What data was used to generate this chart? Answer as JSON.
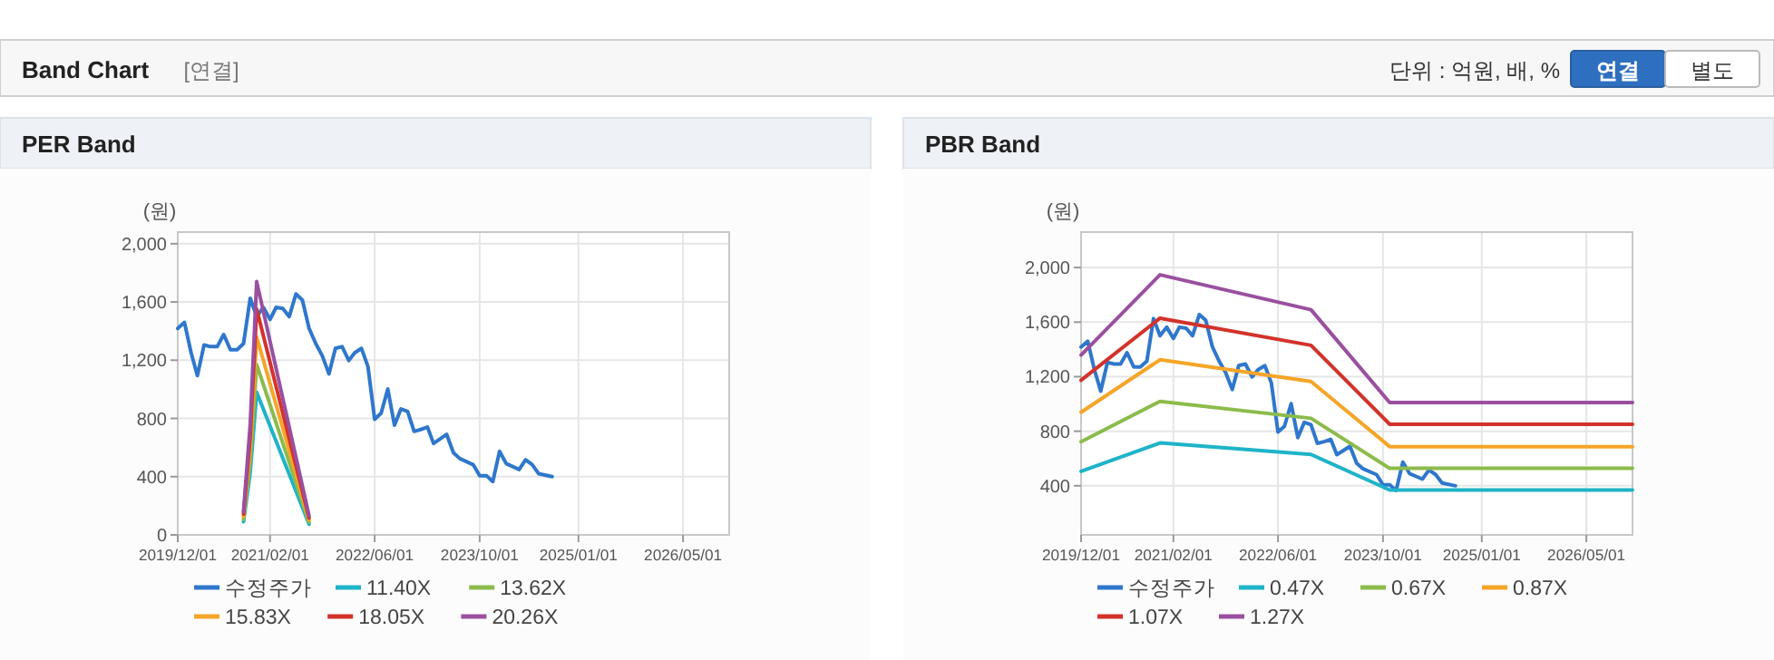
{
  "chart_data": [
    {
      "type": "other",
      "title": "Band Chart",
      "annotations": [
        "[연결]",
        "단위 : 억원, 배, %",
        "연결",
        "별도"
      ]
    },
    {
      "type": "line",
      "title": "PER Band",
      "ylabel": "(원)",
      "grid": true,
      "legend": "bottom",
      "xlim": [
        "2019-12-01",
        "2026-12-01"
      ],
      "xticks": [
        {
          "value": "2019-12-01",
          "label": "2019/12/01"
        },
        {
          "value": "2021-02-01",
          "label": "2021/02/01"
        },
        {
          "value": "2022-06-01",
          "label": "2022/06/01"
        },
        {
          "value": "2023-10-01",
          "label": "2023/10/01"
        },
        {
          "value": "2025-01-01",
          "label": "2025/01/01"
        },
        {
          "value": "2026-05-01",
          "label": "2026/05/01"
        }
      ],
      "ylim": [
        0,
        2080
      ],
      "yticks": [
        0,
        400,
        800,
        {
          "value": 1200,
          "label": "1,200"
        },
        {
          "value": 1600,
          "label": "1,600"
        },
        {
          "value": 2000,
          "label": "2,000"
        }
      ],
      "x": [
        "2019-12",
        "2020-01",
        "2020-02",
        "2020-03",
        "2020-04",
        "2020-05",
        "2020-06",
        "2020-07",
        "2020-08",
        "2020-09",
        "2020-10",
        "2020-11",
        "2020-12",
        "2021-01",
        "2021-02",
        "2021-03",
        "2021-04",
        "2021-05",
        "2021-06",
        "2021-07",
        "2021-08",
        "2021-09",
        "2021-10",
        "2021-11",
        "2021-12",
        "2022-01",
        "2022-02",
        "2022-03",
        "2022-04",
        "2022-05",
        "2022-06",
        "2022-07",
        "2022-08",
        "2022-09",
        "2022-10",
        "2022-11",
        "2022-12",
        "2023-01",
        "2023-02",
        "2023-03",
        "2023-05",
        "2023-06",
        "2023-07",
        "2023-09",
        "2023-10",
        "2023-11",
        "2023-12",
        "2024-01",
        "2024-02",
        "2024-04",
        "2024-05",
        "2024-06",
        "2024-07",
        "2024-09"
      ],
      "series": [
        {
          "name": "수정주가",
          "color": "#2f77cc",
          "values": [
            1418,
            1460,
            1250,
            1094,
            1305,
            1293,
            1293,
            1376,
            1272,
            1272,
            1314,
            1626,
            1500,
            1563,
            1480,
            1563,
            1555,
            1500,
            1655,
            1613,
            1418,
            1314,
            1231,
            1106,
            1281,
            1293,
            1198,
            1252,
            1281,
            1156,
            794,
            836,
            1002,
            753,
            865,
            848,
            711,
            724,
            740,
            628,
            690,
            565,
            524,
            482,
            407,
            407,
            366,
            574,
            490,
            449,
            516,
            482,
            420,
            400
          ]
        },
        {
          "name": "11.40X",
          "color": "#1fb3c8",
          "x": [
            "2020-10",
            "2020-11",
            "2020-12",
            "2021-08"
          ],
          "values": [
            90,
            428,
            979,
            73
          ]
        },
        {
          "name": "13.62X",
          "color": "#8cbb4b",
          "x": [
            "2020-10",
            "2020-11",
            "2020-12",
            "2021-08"
          ],
          "values": [
            108,
            511,
            1170,
            88
          ]
        },
        {
          "name": "15.83X",
          "color": "#f5a528",
          "x": [
            "2020-10",
            "2020-11",
            "2020-12",
            "2021-08"
          ],
          "values": [
            125,
            594,
            1359,
            102
          ]
        },
        {
          "name": "18.05X",
          "color": "#d3322b",
          "x": [
            "2020-10",
            "2020-11",
            "2020-12",
            "2021-08"
          ],
          "values": [
            143,
            677,
            1550,
            116
          ]
        },
        {
          "name": "20.26X",
          "color": "#9a4f9f",
          "x": [
            "2020-10",
            "2020-11",
            "2020-12",
            "2021-08"
          ],
          "values": [
            160,
            760,
            1740,
            130
          ]
        }
      ]
    },
    {
      "type": "line",
      "title": "PBR Band",
      "ylabel": "(원)",
      "grid": true,
      "legend": "bottom",
      "xlim": [
        "2019-12-01",
        "2026-12-01"
      ],
      "xticks": [
        {
          "value": "2019-12-01",
          "label": "2019/12/01"
        },
        {
          "value": "2021-02-01",
          "label": "2021/02/01"
        },
        {
          "value": "2022-06-01",
          "label": "2022/06/01"
        },
        {
          "value": "2023-10-01",
          "label": "2023/10/01"
        },
        {
          "value": "2025-01-01",
          "label": "2025/01/01"
        },
        {
          "value": "2026-05-01",
          "label": "2026/05/01"
        }
      ],
      "ylim": [
        40,
        2260
      ],
      "yticks": [
        400,
        800,
        {
          "value": 1200,
          "label": "1,200"
        },
        {
          "value": 1600,
          "label": "1,600"
        },
        {
          "value": 2000,
          "label": "2,000"
        }
      ],
      "x": [
        "2019-12",
        "2020-01",
        "2020-02",
        "2020-03",
        "2020-04",
        "2020-05",
        "2020-06",
        "2020-07",
        "2020-08",
        "2020-09",
        "2020-10",
        "2020-11",
        "2020-12",
        "2021-01",
        "2021-02",
        "2021-03",
        "2021-04",
        "2021-05",
        "2021-06",
        "2021-07",
        "2021-08",
        "2021-09",
        "2021-10",
        "2021-11",
        "2021-12",
        "2022-01",
        "2022-02",
        "2022-03",
        "2022-04",
        "2022-05",
        "2022-06",
        "2022-07",
        "2022-08",
        "2022-09",
        "2022-10",
        "2022-11",
        "2022-12",
        "2023-01",
        "2023-02",
        "2023-03",
        "2023-05",
        "2023-06",
        "2023-07",
        "2023-09",
        "2023-10",
        "2023-11",
        "2023-12",
        "2024-01",
        "2024-02",
        "2024-04",
        "2024-05",
        "2024-06",
        "2024-07",
        "2024-09"
      ],
      "series": [
        {
          "name": "수정주가",
          "color": "#2f77cc",
          "values": [
            1418,
            1460,
            1250,
            1094,
            1305,
            1293,
            1293,
            1376,
            1272,
            1272,
            1314,
            1626,
            1500,
            1563,
            1480,
            1563,
            1555,
            1500,
            1655,
            1613,
            1418,
            1314,
            1231,
            1106,
            1281,
            1293,
            1198,
            1252,
            1281,
            1156,
            794,
            836,
            1002,
            753,
            865,
            848,
            711,
            724,
            740,
            628,
            690,
            565,
            524,
            482,
            407,
            407,
            366,
            574,
            490,
            449,
            516,
            482,
            420,
            400
          ]
        },
        {
          "name": "0.47X",
          "color": "#1fb3c8",
          "x": [
            "2019-12",
            "2020-12",
            "2022-11",
            "2023-11",
            "2026-12"
          ],
          "values": [
            506,
            714,
            630,
            369,
            369
          ]
        },
        {
          "name": "0.67X",
          "color": "#8cbb4b",
          "x": [
            "2019-12",
            "2020-12",
            "2022-11",
            "2023-11",
            "2026-12"
          ],
          "values": [
            723,
            1019,
            895,
            528,
            528
          ]
        },
        {
          "name": "0.87X",
          "color": "#f5a528",
          "x": [
            "2019-12",
            "2020-12",
            "2022-11",
            "2023-11",
            "2026-12"
          ],
          "values": [
            939,
            1324,
            1165,
            687,
            687
          ]
        },
        {
          "name": "1.07X",
          "color": "#d3322b",
          "x": [
            "2019-12",
            "2020-12",
            "2022-11",
            "2023-11",
            "2026-12"
          ],
          "values": [
            1174,
            1629,
            1430,
            851,
            851
          ]
        },
        {
          "name": "1.27X",
          "color": "#9a4f9f",
          "x": [
            "2019-12",
            "2020-12",
            "2022-11",
            "2023-11",
            "2026-12"
          ],
          "values": [
            1359,
            1947,
            1691,
            1010,
            1010
          ]
        }
      ]
    }
  ]
}
